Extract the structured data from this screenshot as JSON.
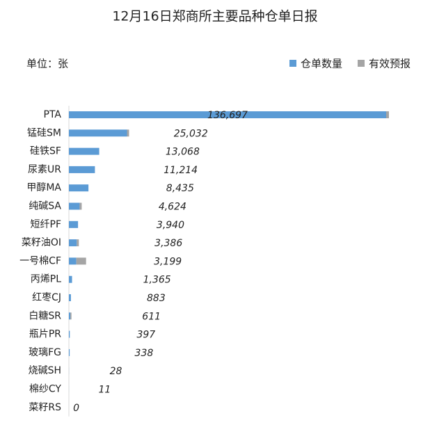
{
  "chart_data": {
    "type": "stacked-bar-horizontal",
    "title": "12月16日郑商所主要品种仓单日报",
    "unit": "单位：张",
    "categories": [
      "PTA",
      "锰硅SM",
      "硅铁SF",
      "尿素UR",
      "甲醇MA",
      "纯碱SA",
      "短纤PF",
      "菜籽油OI",
      "一号棉CF",
      "丙烯PL",
      "红枣CJ",
      "白糖SR",
      "瓶片PR",
      "玻璃FG",
      "烧碱SH",
      "棉纱CY",
      "菜籽RS"
    ],
    "series": [
      {
        "name": "仓单数量",
        "color": "#5b9bd5",
        "values": [
          136697,
          25032,
          13068,
          11214,
          8435,
          4624,
          3940,
          3386,
          3199,
          1365,
          883,
          611,
          397,
          338,
          28,
          11,
          0
        ],
        "value_labels": [
          "136,697",
          "25,032",
          "13,068",
          "11,214",
          "8,435",
          "4,624",
          "3,940",
          "3,386",
          "3,199",
          "1,365",
          "883",
          "611",
          "397",
          "338",
          "28",
          "11",
          "0"
        ]
      },
      {
        "name": "有效预报",
        "color": "#a5a5a5",
        "values": [
          1200,
          900,
          0,
          0,
          0,
          900,
          0,
          900,
          4200,
          0,
          0,
          500,
          0,
          0,
          0,
          0,
          0
        ]
      }
    ],
    "legend": "top-right"
  }
}
